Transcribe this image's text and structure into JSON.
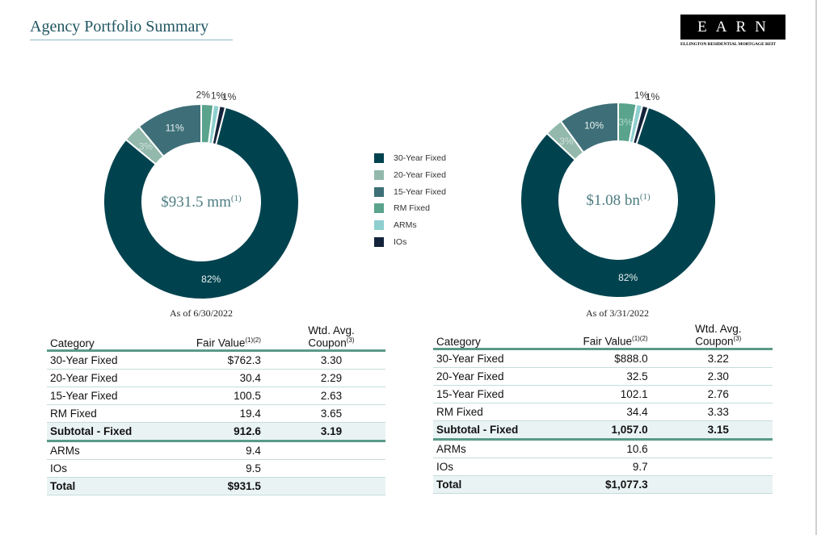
{
  "title": "Agency Portfolio Summary",
  "logo": {
    "text": "EARN",
    "subtitle": "ELLINGTON RESIDENTIAL MORTGAGE REIT"
  },
  "colors": {
    "30-Year Fixed": "#00434f",
    "20-Year Fixed": "#93b9ac",
    "15-Year Fixed": "#3e6f78",
    "RM Fixed": "#5aa38c",
    "ARMs": "#8ecfcf",
    "IOs": "#14233a"
  },
  "legend": [
    "30-Year Fixed",
    "20-Year Fixed",
    "15-Year Fixed",
    "RM Fixed",
    "ARMs",
    "IOs"
  ],
  "chart_data": [
    {
      "type": "pie",
      "variant": "donut",
      "center_label": "$931.5 mm",
      "center_sup": "(1)",
      "caption": "As of 6/30/2022",
      "slices": [
        {
          "name": "RM Fixed",
          "value": 2,
          "label": "2%"
        },
        {
          "name": "ARMs",
          "value": 1,
          "label": "1%"
        },
        {
          "name": "IOs",
          "value": 1,
          "label": "1%"
        },
        {
          "name": "30-Year Fixed",
          "value": 82,
          "label": "82%"
        },
        {
          "name": "20-Year Fixed",
          "value": 3,
          "label": "3%"
        },
        {
          "name": "15-Year Fixed",
          "value": 11,
          "label": "11%"
        }
      ]
    },
    {
      "type": "pie",
      "variant": "donut",
      "center_label": "$1.08 bn",
      "center_sup": "(1)",
      "caption": "As of 3/31/2022",
      "slices": [
        {
          "name": "RM Fixed",
          "value": 3,
          "label": "3%"
        },
        {
          "name": "ARMs",
          "value": 1,
          "label": "1%"
        },
        {
          "name": "IOs",
          "value": 1,
          "label": "1%"
        },
        {
          "name": "30-Year Fixed",
          "value": 82,
          "label": "82%"
        },
        {
          "name": "20-Year Fixed",
          "value": 3,
          "label": "3%"
        },
        {
          "name": "15-Year Fixed",
          "value": 10,
          "label": "10%"
        }
      ]
    }
  ],
  "table_headers": {
    "category": "Category",
    "fair_value": "Fair Value",
    "fair_value_sup": "(1)(2)",
    "coupon_line1": "Wtd. Avg.",
    "coupon_line2": "Coupon",
    "coupon_sup": "(3)"
  },
  "tables": [
    {
      "rows": [
        [
          "30-Year Fixed",
          "$762.3",
          "3.30"
        ],
        [
          "20-Year Fixed",
          "30.4",
          "2.29"
        ],
        [
          "15-Year Fixed",
          "100.5",
          "2.63"
        ],
        [
          "RM Fixed",
          "19.4",
          "3.65"
        ],
        [
          "Subtotal - Fixed",
          "912.6",
          "3.19"
        ],
        [
          "ARMs",
          "9.4",
          ""
        ],
        [
          "IOs",
          "9.5",
          ""
        ],
        [
          "Total",
          "$931.5",
          ""
        ]
      ]
    },
    {
      "rows": [
        [
          "30-Year Fixed",
          "$888.0",
          "3.22"
        ],
        [
          "20-Year Fixed",
          "32.5",
          "2.30"
        ],
        [
          "15-Year Fixed",
          "102.1",
          "2.76"
        ],
        [
          "RM Fixed",
          "34.4",
          "3.33"
        ],
        [
          "Subtotal - Fixed",
          "1,057.0",
          "3.15"
        ],
        [
          "ARMs",
          "10.6",
          ""
        ],
        [
          "IOs",
          "9.7",
          ""
        ],
        [
          "Total",
          "$1,077.3",
          ""
        ]
      ]
    }
  ]
}
